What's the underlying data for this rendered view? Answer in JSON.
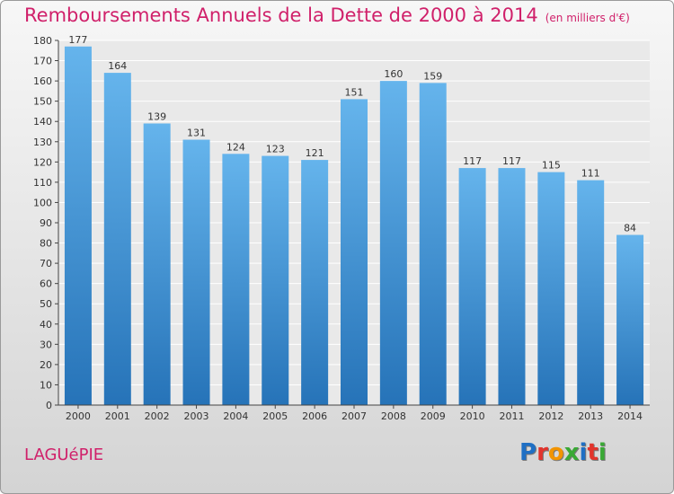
{
  "header": {
    "title": "Remboursements Annuels de la Dette de 2000 à 2014",
    "subtitle": "(en milliers d'€)"
  },
  "footer": {
    "commune": "LAGUéPIE",
    "logo_text": "Proxiti"
  },
  "colors": {
    "title": "#d0206a",
    "bar_top": "#65b4ec",
    "bar_bottom": "#2673b8",
    "logo_letters": [
      "#1f6fc4",
      "#e2342c",
      "#f29400",
      "#3aa935",
      "#1f6fc4",
      "#e2342c",
      "#3aa935"
    ]
  },
  "chart_data": {
    "type": "bar",
    "title": "Remboursements Annuels de la Dette de 2000 à 2014",
    "subtitle": "(en milliers d'€)",
    "xlabel": "",
    "ylabel": "",
    "categories": [
      "2000",
      "2001",
      "2002",
      "2003",
      "2004",
      "2005",
      "2006",
      "2007",
      "2008",
      "2009",
      "2010",
      "2011",
      "2012",
      "2013",
      "2014"
    ],
    "values": [
      177,
      164,
      139,
      131,
      124,
      123,
      121,
      151,
      160,
      159,
      117,
      117,
      115,
      111,
      84
    ],
    "ylim": [
      0,
      180
    ],
    "yticks": [
      0,
      10,
      20,
      30,
      40,
      50,
      60,
      70,
      80,
      90,
      100,
      110,
      120,
      130,
      140,
      150,
      160,
      170,
      180
    ],
    "grid": true,
    "legend": "none"
  }
}
